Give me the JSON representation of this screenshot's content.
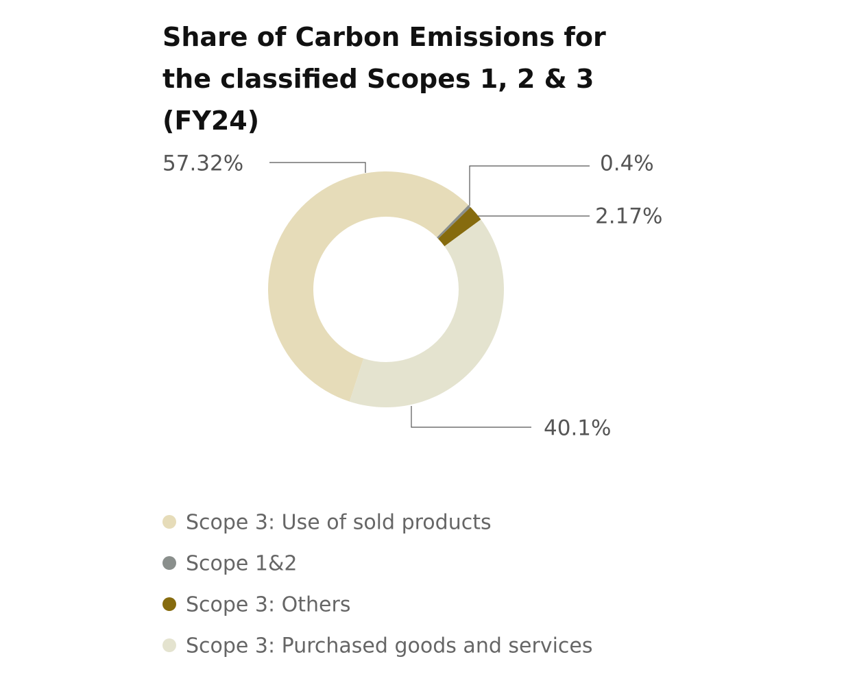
{
  "chart_data": {
    "type": "donut",
    "title": "Share of Carbon Emissions for the classified Scopes 1, 2 & 3 (FY24)",
    "categories": [
      "Scope 3: Use of sold products",
      "Scope 1&2",
      "Scope 3: Others",
      "Scope 3: Purchased goods and services"
    ],
    "values": [
      57.32,
      0.4,
      2.17,
      40.1
    ],
    "value_labels": [
      "57.32%",
      "0.4%",
      "2.17%",
      "40.1%"
    ],
    "colors": [
      "#e6dcb9",
      "#8a8f8c",
      "#866b0e",
      "#e4e3cf"
    ],
    "legend": "bottom-left"
  }
}
